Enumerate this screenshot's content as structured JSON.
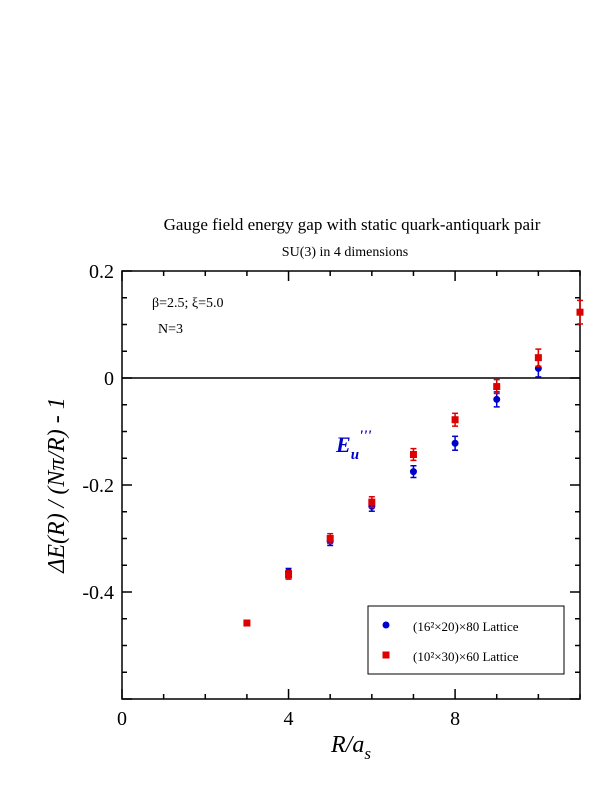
{
  "chart_data": {
    "type": "scatter",
    "title": "Gauge field energy gap with static quark-antiquark pair",
    "subtitle": "SU(3) in 4 dimensions",
    "xlabel": "R/a_s",
    "ylabel": "ΔE(R) / (Nπ/R) - 1",
    "xlim": [
      0,
      11
    ],
    "ylim": [
      -0.6,
      0.2
    ],
    "x_ticks": [
      "0",
      "4",
      "8"
    ],
    "y_ticks": [
      "0.2",
      "0",
      "-0.2",
      "-0.4"
    ],
    "grid": false,
    "legend_position": "bottom-right",
    "annotations": {
      "params": "β=2.5; ξ=5.0",
      "n_label": "N=3",
      "state_label": "E_u'''"
    },
    "series": [
      {
        "name": "(16²×20)×80 Lattice",
        "color": "#0000cc",
        "marker": "circle",
        "points": [
          {
            "x": 4,
            "y": -0.362,
            "err": 0.006
          },
          {
            "x": 5,
            "y": -0.305,
            "err": 0.008
          },
          {
            "x": 6,
            "y": -0.24,
            "err": 0.009
          },
          {
            "x": 7,
            "y": -0.175,
            "err": 0.011
          },
          {
            "x": 8,
            "y": -0.122,
            "err": 0.013
          },
          {
            "x": 9,
            "y": -0.04,
            "err": 0.014
          },
          {
            "x": 10,
            "y": 0.018,
            "err": 0.016
          }
        ]
      },
      {
        "name": "(10²×30)×60 Lattice",
        "color": "#dd0000",
        "marker": "square",
        "points": [
          {
            "x": 3,
            "y": -0.458,
            "err": 0.005
          },
          {
            "x": 4,
            "y": -0.368,
            "err": 0.008
          },
          {
            "x": 5,
            "y": -0.3,
            "err": 0.009
          },
          {
            "x": 6,
            "y": -0.232,
            "err": 0.01
          },
          {
            "x": 7,
            "y": -0.143,
            "err": 0.011
          },
          {
            "x": 8,
            "y": -0.078,
            "err": 0.012
          },
          {
            "x": 9,
            "y": -0.016,
            "err": 0.013
          },
          {
            "x": 10,
            "y": 0.038,
            "err": 0.016
          },
          {
            "x": 11,
            "y": 0.123,
            "err": 0.022
          }
        ]
      }
    ],
    "reference_line_y": 0
  }
}
